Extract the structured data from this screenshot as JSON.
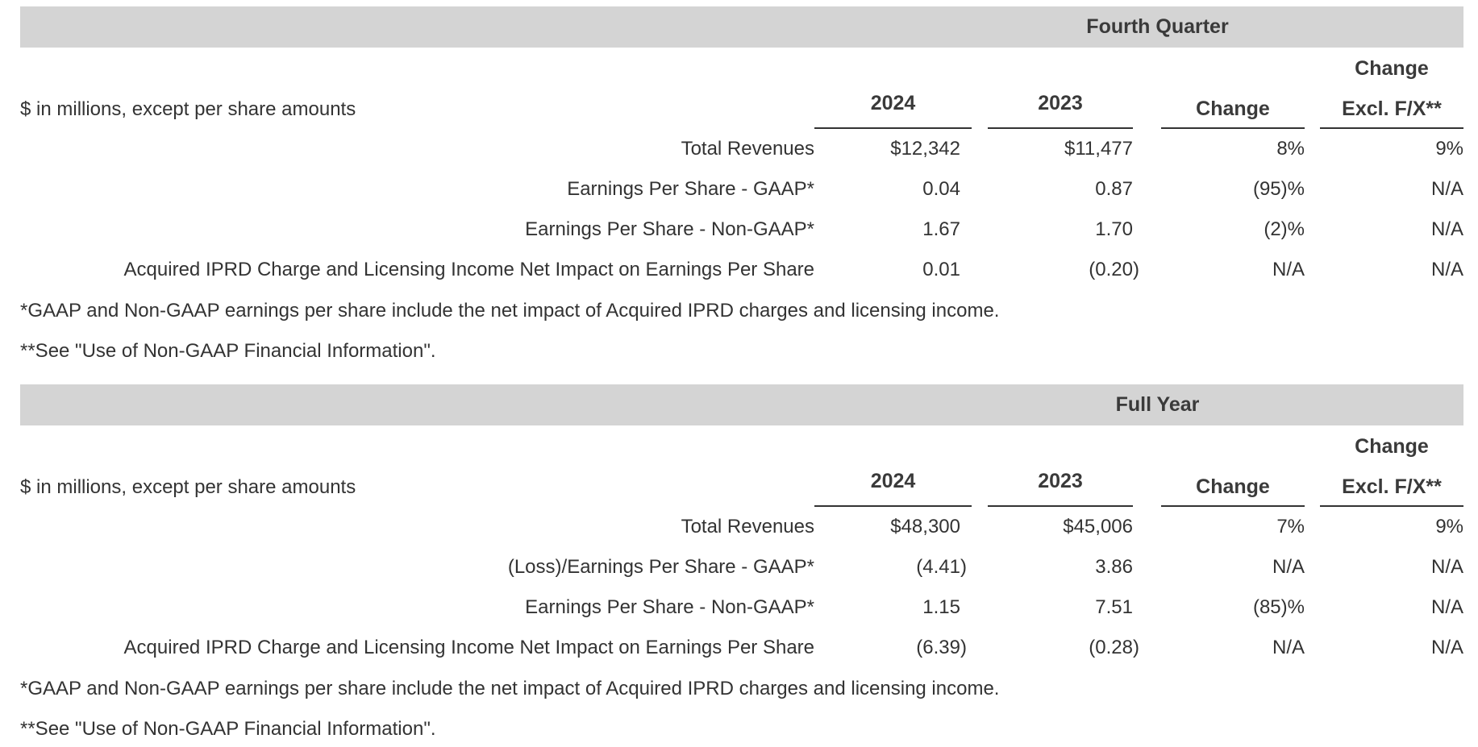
{
  "sections": [
    {
      "title": "Fourth Quarter",
      "units_label": "$ in millions, except per share amounts",
      "columns": {
        "current": "2024",
        "prior": "2023",
        "change": "Change",
        "excl_line1": "Change",
        "excl_line2": "Excl. F/X**"
      },
      "rows": [
        {
          "label": "Total Revenues",
          "current": "$12,342",
          "prior": "$11,477",
          "change": "8%",
          "excl": "9%"
        },
        {
          "label": "Earnings Per Share - GAAP*",
          "current": "0.04",
          "prior": "0.87",
          "change": "(95)%",
          "excl": "N/A"
        },
        {
          "label": "Earnings Per Share - Non-GAAP*",
          "current": "1.67",
          "prior": "1.70",
          "change": "(2)%",
          "excl": "N/A"
        },
        {
          "label": "Acquired IPRD Charge and Licensing Income Net Impact on Earnings Per Share",
          "current": "0.01",
          "prior": "(0.20)",
          "change": "N/A",
          "excl": "N/A"
        }
      ],
      "footnotes": [
        "*GAAP and Non-GAAP earnings per share include the net impact of Acquired IPRD charges and licensing income.",
        "**See \"Use of Non-GAAP Financial Information\"."
      ]
    },
    {
      "title": "Full Year",
      "units_label": "$ in millions, except per share amounts",
      "columns": {
        "current": "2024",
        "prior": "2023",
        "change": "Change",
        "excl_line1": "Change",
        "excl_line2": "Excl. F/X**"
      },
      "rows": [
        {
          "label": "Total Revenues",
          "current": "$48,300",
          "prior": "$45,006",
          "change": "7%",
          "excl": "9%"
        },
        {
          "label": "(Loss)/Earnings Per Share - GAAP*",
          "current": "(4.41)",
          "prior": "3.86",
          "change": "N/A",
          "excl": "N/A"
        },
        {
          "label": "Earnings Per Share - Non-GAAP*",
          "current": "1.15",
          "prior": "7.51",
          "change": "(85)%",
          "excl": "N/A"
        },
        {
          "label": "Acquired IPRD Charge and Licensing Income Net Impact on Earnings Per Share",
          "current": "(6.39)",
          "prior": "(0.28)",
          "change": "N/A",
          "excl": "N/A"
        }
      ],
      "footnotes": [
        "*GAAP and Non-GAAP earnings per share include the net impact of Acquired IPRD charges and licensing income.",
        "**See \"Use of Non-GAAP Financial Information\"."
      ]
    }
  ]
}
